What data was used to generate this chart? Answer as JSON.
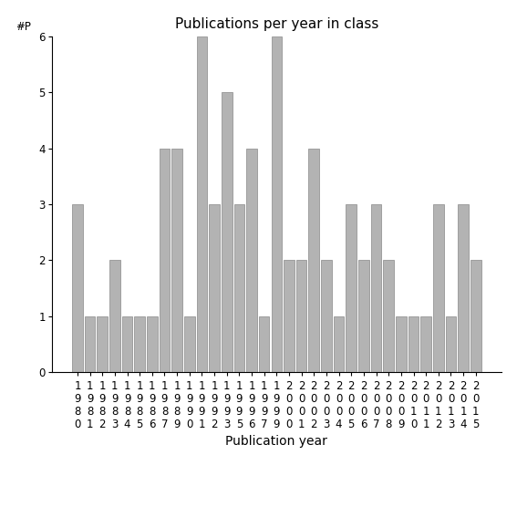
{
  "categories": [
    "1980",
    "1981",
    "1982",
    "1983",
    "1984",
    "1985",
    "1986",
    "1987",
    "1989",
    "1990",
    "1991",
    "1992",
    "1993",
    "1995",
    "1996",
    "1997",
    "1999",
    "2000",
    "2001",
    "2002",
    "2003",
    "2004",
    "2005",
    "2006",
    "2007",
    "2008",
    "2009",
    "2010",
    "2011",
    "2012",
    "2013",
    "2014",
    "2015"
  ],
  "values": [
    3,
    1,
    1,
    2,
    1,
    1,
    1,
    4,
    4,
    1,
    6,
    3,
    5,
    3,
    4,
    1,
    6,
    2,
    2,
    4,
    2,
    1,
    3,
    2,
    3,
    2,
    1,
    1,
    1,
    3,
    1,
    3,
    2
  ],
  "bar_color": "#b3b3b3",
  "bar_edge_color": "#888888",
  "bar_edge_width": 0.5,
  "title": "Publications per year in class",
  "xlabel": "Publication year",
  "ylabel": "#P",
  "ylim": [
    0,
    6
  ],
  "yticks": [
    0,
    1,
    2,
    3,
    4,
    5,
    6
  ],
  "title_fontsize": 11,
  "axis_label_fontsize": 10,
  "tick_fontsize": 8.5,
  "background_color": "#ffffff",
  "bar_width": 0.85
}
